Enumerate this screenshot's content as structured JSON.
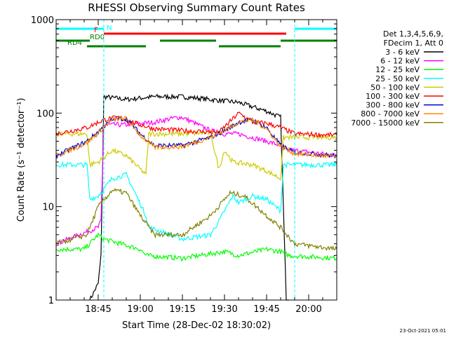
{
  "chart_data": {
    "type": "line",
    "title": "RHESSI Observing Summary Count Rates",
    "xlabel": "Start Time (28-Dec-02 18:30:02)",
    "ylabel": "Count Rate (s⁻¹ detector⁻¹)",
    "yscale": "log",
    "ylim": [
      1,
      1000
    ],
    "xlim_minutes_after_start": [
      0,
      100
    ],
    "x_tick_labels": [
      "18:45",
      "19:00",
      "19:15",
      "19:30",
      "19:45",
      "20:00"
    ],
    "x_ticks_minutes_after_start": [
      15,
      30,
      45,
      60,
      75,
      90
    ],
    "y_tick_labels": [
      "1",
      "10",
      "100",
      "1000"
    ],
    "y_ticks": [
      1,
      10,
      100,
      1000
    ],
    "legend_title": [
      "Det 1,3,4,5,6,9,",
      "FDecim 1, Att 0"
    ],
    "legend_placement": "right",
    "footer_stamp": "23-Oct-2021 05:01",
    "flags": [
      {
        "label": "N",
        "color": "#00ffff",
        "spans_minutes": [
          [
            0,
            17
          ],
          [
            85,
            100
          ]
        ]
      },
      {
        "label": "F",
        "color": "#ff0000",
        "spans_minutes": [
          [
            17,
            82
          ]
        ]
      },
      {
        "label": "RD0",
        "color": "#008000",
        "spans_minutes": [
          [
            0,
            12
          ],
          [
            37,
            57
          ],
          [
            80,
            100
          ]
        ]
      },
      {
        "label": "RD4",
        "color": "#008000",
        "spans_minutes": [
          [
            11,
            32
          ],
          [
            58,
            80
          ]
        ]
      }
    ],
    "series": [
      {
        "name": "3 - 6 keV",
        "color": "#000000",
        "x": [
          12,
          15,
          16,
          17,
          25,
          35,
          45,
          55,
          65,
          75,
          80,
          82,
          83
        ],
        "y": [
          1,
          1.5,
          3,
          150,
          140,
          150,
          150,
          140,
          130,
          105,
          90,
          1,
          1
        ]
      },
      {
        "name": "6 - 12 keV",
        "color": "#ff00ff",
        "x": [
          0,
          15,
          16,
          17,
          25,
          35,
          43,
          45,
          55,
          60,
          65,
          75,
          80,
          82,
          85,
          100
        ],
        "y": [
          4,
          6,
          7,
          75,
          75,
          80,
          90,
          90,
          65,
          60,
          60,
          50,
          45,
          40,
          40,
          35
        ]
      },
      {
        "name": "12 - 25 keV",
        "color": "#00ff00",
        "x": [
          0,
          10,
          15,
          17,
          30,
          32,
          45,
          60,
          65,
          75,
          80,
          83,
          100
        ],
        "y": [
          3.5,
          3.5,
          5,
          4.5,
          3.5,
          3,
          2.8,
          3.3,
          3,
          3.5,
          3.3,
          3,
          2.8
        ]
      },
      {
        "name": "25 - 50 keV",
        "color": "#00ffff",
        "x": [
          0,
          11,
          12,
          15,
          20,
          25,
          32,
          33,
          45,
          55,
          58,
          63,
          65,
          70,
          75,
          80,
          81,
          100
        ],
        "y": [
          28,
          28,
          12,
          13,
          20,
          22,
          8,
          6,
          4.5,
          5,
          7,
          13,
          11,
          13,
          12,
          9,
          28,
          28
        ]
      },
      {
        "name": "50 - 100 keV",
        "color": "#cccc00",
        "x": [
          0,
          11,
          12,
          15,
          20,
          25,
          32,
          33,
          45,
          55,
          58,
          60,
          63,
          70,
          75,
          80,
          81,
          100
        ],
        "y": [
          60,
          60,
          28,
          30,
          40,
          35,
          22,
          60,
          60,
          62,
          25,
          40,
          30,
          28,
          24,
          20,
          55,
          55
        ]
      },
      {
        "name": "100 - 300 keV",
        "color": "#ff0000",
        "x": [
          0,
          11,
          17,
          22,
          30,
          35,
          45,
          58,
          65,
          70,
          75,
          80,
          85,
          100
        ],
        "y": [
          60,
          70,
          85,
          90,
          75,
          68,
          65,
          62,
          100,
          80,
          78,
          70,
          60,
          58
        ]
      },
      {
        "name": "300 - 800 keV",
        "color": "#0000cc",
        "x": [
          0,
          11,
          20,
          25,
          30,
          35,
          45,
          55,
          60,
          65,
          70,
          75,
          80,
          85,
          100
        ],
        "y": [
          35,
          50,
          85,
          88,
          60,
          45,
          45,
          55,
          65,
          80,
          85,
          70,
          45,
          38,
          35
        ]
      },
      {
        "name": "800 - 7000 keV",
        "color": "#ff8800",
        "x": [
          0,
          11,
          20,
          25,
          30,
          35,
          45,
          55,
          60,
          65,
          70,
          75,
          80,
          85,
          100
        ],
        "y": [
          35,
          48,
          85,
          88,
          58,
          43,
          44,
          55,
          65,
          80,
          85,
          68,
          44,
          37,
          34
        ]
      },
      {
        "name": "7000 - 15000 keV",
        "color": "#808000",
        "x": [
          0,
          11,
          15,
          20,
          25,
          30,
          35,
          45,
          55,
          62,
          67,
          75,
          80,
          85,
          100
        ],
        "y": [
          4,
          5,
          10,
          15,
          14,
          8,
          5,
          5,
          8,
          14,
          13,
          8,
          6,
          4,
          3.5
        ]
      }
    ]
  }
}
